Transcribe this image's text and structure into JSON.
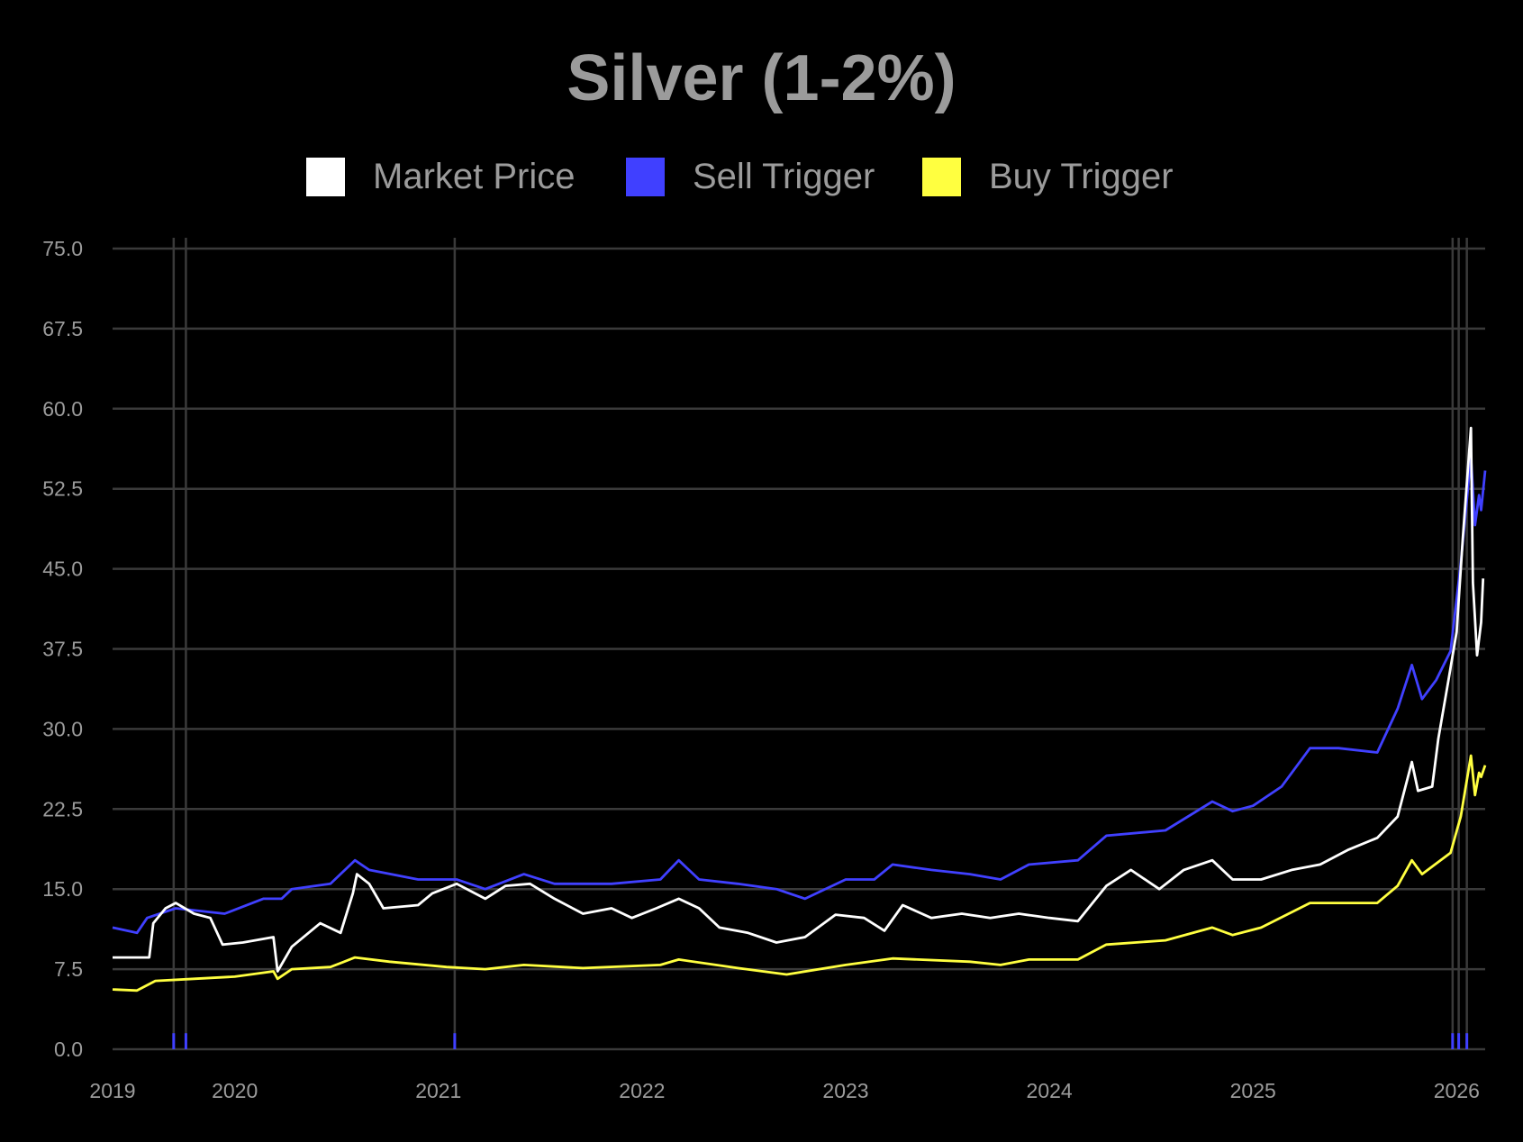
{
  "chart_data": {
    "type": "line",
    "title": "Silver (1-2%)",
    "xlabel": "",
    "ylabel": "",
    "xlim": [
      2019.4,
      2026.14
    ],
    "ylim": [
      0,
      75
    ],
    "yticks": [
      "0.0",
      "7.5",
      "15.0",
      "22.5",
      "30.0",
      "37.5",
      "45.0",
      "52.5",
      "60.0",
      "67.5",
      "75.0"
    ],
    "xticks": [
      "2019",
      "2020",
      "2021",
      "2022",
      "2023",
      "2024",
      "2025",
      "2026"
    ],
    "grid": true,
    "legend_position": "top",
    "sell_events": [
      2019.7,
      2019.76,
      2021.08,
      2025.98,
      2026.01,
      2026.05
    ],
    "series": [
      {
        "name": "Market Price",
        "color": "#ffffff",
        "x": [
          2019.4,
          2019.58,
          2019.6,
          2019.66,
          2019.71,
          2019.8,
          2019.88,
          2019.94,
          2020.04,
          2020.19,
          2020.21,
          2020.28,
          2020.42,
          2020.52,
          2020.58,
          2020.6,
          2020.66,
          2020.73,
          2020.9,
          2020.97,
          2021.09,
          2021.23,
          2021.33,
          2021.45,
          2021.57,
          2021.71,
          2021.85,
          2021.95,
          2022.07,
          2022.18,
          2022.28,
          2022.38,
          2022.52,
          2022.66,
          2022.8,
          2022.95,
          2023.09,
          2023.19,
          2023.28,
          2023.42,
          2023.57,
          2023.71,
          2023.85,
          2024.0,
          2024.14,
          2024.28,
          2024.4,
          2024.54,
          2024.66,
          2024.8,
          2024.9,
          2025.04,
          2025.19,
          2025.33,
          2025.47,
          2025.61,
          2025.71,
          2025.78,
          2025.81,
          2025.88,
          2025.91,
          2025.96,
          2026.0,
          2026.03,
          2026.07,
          2026.08,
          2026.1,
          2026.12,
          2026.13
        ],
        "y": [
          8.6,
          8.6,
          11.8,
          13.2,
          13.7,
          12.7,
          12.3,
          9.8,
          10.0,
          10.5,
          7.3,
          9.6,
          11.8,
          10.9,
          14.6,
          16.4,
          15.5,
          13.2,
          13.5,
          14.6,
          15.5,
          14.1,
          15.3,
          15.5,
          14.1,
          12.7,
          13.2,
          12.3,
          13.2,
          14.1,
          13.2,
          11.4,
          10.9,
          10.0,
          10.5,
          12.6,
          12.3,
          11.1,
          13.5,
          12.3,
          12.7,
          12.3,
          12.7,
          12.3,
          12.0,
          15.3,
          16.8,
          15.0,
          16.8,
          17.7,
          15.9,
          15.9,
          16.8,
          17.3,
          18.7,
          19.8,
          21.8,
          26.9,
          24.2,
          24.6,
          29.1,
          34.6,
          39.1,
          47.8,
          58.2,
          43.7,
          36.9,
          40.0,
          44.1
        ]
      },
      {
        "name": "Sell Trigger",
        "color": "#4040ff",
        "x": [
          2019.4,
          2019.52,
          2019.57,
          2019.71,
          2019.95,
          2020.14,
          2020.23,
          2020.28,
          2020.47,
          2020.59,
          2020.66,
          2020.9,
          2021.09,
          2021.23,
          2021.42,
          2021.57,
          2021.85,
          2022.09,
          2022.18,
          2022.28,
          2022.47,
          2022.66,
          2022.8,
          2023.0,
          2023.14,
          2023.23,
          2023.42,
          2023.61,
          2023.76,
          2023.9,
          2024.14,
          2024.28,
          2024.57,
          2024.8,
          2024.9,
          2025.0,
          2025.14,
          2025.28,
          2025.42,
          2025.61,
          2025.71,
          2025.78,
          2025.83,
          2025.9,
          2025.97,
          2026.02,
          2026.07,
          2026.09,
          2026.11,
          2026.12,
          2026.14
        ],
        "y": [
          11.4,
          10.9,
          12.3,
          13.2,
          12.7,
          14.1,
          14.1,
          15.0,
          15.5,
          17.7,
          16.8,
          15.9,
          15.9,
          15.0,
          16.4,
          15.5,
          15.5,
          15.9,
          17.7,
          15.9,
          15.5,
          15.0,
          14.1,
          15.9,
          15.9,
          17.3,
          16.8,
          16.4,
          15.9,
          17.3,
          17.7,
          20.0,
          20.5,
          23.2,
          22.3,
          22.8,
          24.6,
          28.2,
          28.2,
          27.8,
          31.9,
          36.0,
          32.8,
          34.6,
          37.3,
          45.5,
          55.5,
          49.1,
          51.9,
          50.5,
          54.2
        ]
      },
      {
        "name": "Buy Trigger",
        "color": "#ffff40",
        "x": [
          2019.4,
          2019.52,
          2019.61,
          2019.8,
          2020.0,
          2020.19,
          2020.21,
          2020.28,
          2020.47,
          2020.59,
          2020.76,
          2021.04,
          2021.23,
          2021.42,
          2021.71,
          2022.09,
          2022.18,
          2022.47,
          2022.71,
          2023.0,
          2023.23,
          2023.61,
          2023.76,
          2023.9,
          2024.14,
          2024.28,
          2024.57,
          2024.8,
          2024.9,
          2025.04,
          2025.28,
          2025.61,
          2025.71,
          2025.78,
          2025.83,
          2025.97,
          2026.02,
          2026.07,
          2026.09,
          2026.11,
          2026.12,
          2026.14
        ],
        "y": [
          5.6,
          5.5,
          6.4,
          6.6,
          6.8,
          7.3,
          6.6,
          7.5,
          7.7,
          8.6,
          8.2,
          7.7,
          7.5,
          7.9,
          7.6,
          7.9,
          8.4,
          7.6,
          7.0,
          7.9,
          8.5,
          8.2,
          7.9,
          8.4,
          8.4,
          9.8,
          10.2,
          11.4,
          10.7,
          11.4,
          13.7,
          13.7,
          15.3,
          17.7,
          16.4,
          18.4,
          21.8,
          27.5,
          23.8,
          25.9,
          25.5,
          26.6
        ]
      }
    ]
  }
}
